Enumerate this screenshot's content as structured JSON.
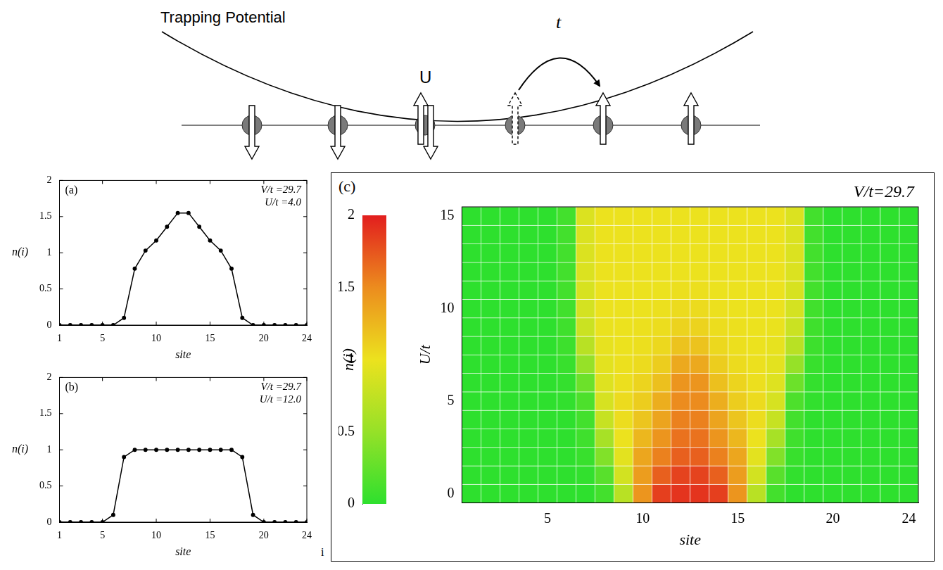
{
  "diagram": {
    "title": "Trapping Potential",
    "labels": {
      "interaction": "U",
      "hopping": "t"
    }
  },
  "chart_data": [
    {
      "type": "line",
      "panel": "(a)",
      "annotations": [
        "V/t =29.7",
        "U/t =4.0"
      ],
      "x_label": "site",
      "y_label": "n(i)",
      "x": [
        1,
        2,
        3,
        4,
        5,
        6,
        7,
        8,
        9,
        10,
        11,
        12,
        13,
        14,
        15,
        16,
        17,
        18,
        19,
        20,
        21,
        22,
        23,
        24
      ],
      "values": [
        0,
        0,
        0,
        0,
        0,
        0,
        0.1,
        0.78,
        1.03,
        1.17,
        1.36,
        1.55,
        1.55,
        1.36,
        1.17,
        1.03,
        0.78,
        0.1,
        0,
        0,
        0,
        0,
        0,
        0
      ],
      "color": "#000000",
      "marker": "circle",
      "grid": false,
      "xlim": [
        1,
        24
      ],
      "xticks": [
        1,
        5,
        10,
        15,
        20,
        24
      ],
      "ylim": [
        0,
        2
      ],
      "yticks": [
        0,
        0.5,
        1,
        1.5,
        2
      ]
    },
    {
      "type": "line",
      "panel": "(b)",
      "annotations": [
        "V/t =29.7",
        "U/t =12.0"
      ],
      "x_label": "site",
      "y_label": "n(i)",
      "x": [
        1,
        2,
        3,
        4,
        5,
        6,
        7,
        8,
        9,
        10,
        11,
        12,
        13,
        14,
        15,
        16,
        17,
        18,
        19,
        20,
        21,
        22,
        23,
        24
      ],
      "values": [
        0,
        0,
        0,
        0,
        0,
        0.1,
        0.9,
        1,
        1,
        1,
        1,
        1,
        1,
        1,
        1,
        1,
        1,
        0.9,
        0.1,
        0,
        0,
        0,
        0,
        0
      ],
      "color": "#000000",
      "marker": "circle",
      "grid": false,
      "xlim": [
        1,
        24
      ],
      "xticks": [
        1,
        5,
        10,
        15,
        20,
        24
      ],
      "ylim": [
        0,
        2
      ],
      "yticks": [
        0,
        0.5,
        1,
        1.5,
        2
      ]
    },
    {
      "type": "heatmap",
      "panel": "(c)",
      "annotations": [
        "V/t=29.7"
      ],
      "x_label": "site",
      "y_label": "U/t",
      "colorbar_label": "n(i)",
      "x": [
        1,
        2,
        3,
        4,
        5,
        6,
        7,
        8,
        9,
        10,
        11,
        12,
        13,
        14,
        15,
        16,
        17,
        18,
        19,
        20,
        21,
        22,
        23,
        24
      ],
      "y": [
        0,
        1,
        2,
        3,
        4,
        5,
        6,
        7,
        8,
        9,
        10,
        11,
        12,
        13,
        14,
        15
      ],
      "cells": [
        [
          0,
          0,
          0,
          0,
          0,
          0,
          0,
          0.1,
          0.7,
          1.45,
          1.85,
          1.9,
          1.9,
          1.85,
          1.45,
          0.7,
          0.1,
          0,
          0,
          0,
          0,
          0,
          0,
          0
        ],
        [
          0,
          0,
          0,
          0,
          0,
          0,
          0.02,
          0.2,
          0.85,
          1.4,
          1.7,
          1.83,
          1.83,
          1.7,
          1.4,
          0.85,
          0.2,
          0.02,
          0,
          0,
          0,
          0,
          0,
          0
        ],
        [
          0,
          0,
          0,
          0,
          0,
          0,
          0.05,
          0.4,
          0.95,
          1.35,
          1.55,
          1.7,
          1.7,
          1.55,
          1.35,
          0.95,
          0.4,
          0.05,
          0,
          0,
          0,
          0,
          0,
          0
        ],
        [
          0,
          0,
          0,
          0,
          0,
          0,
          0.08,
          0.6,
          1,
          1.25,
          1.45,
          1.62,
          1.62,
          1.45,
          1.25,
          1,
          0.6,
          0.08,
          0,
          0,
          0,
          0,
          0,
          0
        ],
        [
          0,
          0,
          0,
          0,
          0,
          0,
          0.1,
          0.78,
          1.03,
          1.17,
          1.36,
          1.55,
          1.55,
          1.36,
          1.17,
          1.03,
          0.78,
          0.1,
          0,
          0,
          0,
          0,
          0,
          0
        ],
        [
          0,
          0,
          0,
          0,
          0,
          0.02,
          0.15,
          0.87,
          1.04,
          1.12,
          1.3,
          1.5,
          1.5,
          1.3,
          1.12,
          1.04,
          0.87,
          0.15,
          0.02,
          0,
          0,
          0,
          0,
          0
        ],
        [
          0,
          0,
          0,
          0,
          0,
          0.03,
          0.3,
          0.92,
          1.02,
          1.08,
          1.2,
          1.45,
          1.45,
          1.2,
          1.08,
          1.02,
          0.92,
          0.3,
          0.03,
          0,
          0,
          0,
          0,
          0
        ],
        [
          0,
          0,
          0,
          0,
          0,
          0.05,
          0.5,
          0.95,
          1.01,
          1.04,
          1.12,
          1.33,
          1.33,
          1.12,
          1.04,
          1.01,
          0.95,
          0.5,
          0.05,
          0,
          0,
          0,
          0,
          0
        ],
        [
          0,
          0,
          0,
          0,
          0,
          0.07,
          0.7,
          0.97,
          1,
          1.02,
          1.06,
          1.18,
          1.18,
          1.06,
          1.02,
          1,
          0.97,
          0.7,
          0.07,
          0,
          0,
          0,
          0,
          0
        ],
        [
          0,
          0,
          0,
          0,
          0,
          0.08,
          0.8,
          0.99,
          1,
          1.01,
          1.03,
          1.09,
          1.09,
          1.03,
          1.01,
          1,
          0.99,
          0.8,
          0.08,
          0,
          0,
          0,
          0,
          0
        ],
        [
          0,
          0,
          0,
          0,
          0,
          0.09,
          0.86,
          1,
          1,
          1,
          1.01,
          1.04,
          1.04,
          1.01,
          1,
          1,
          1,
          0.86,
          0.09,
          0,
          0,
          0,
          0,
          0
        ],
        [
          0,
          0,
          0,
          0,
          0,
          0.1,
          0.88,
          1,
          1,
          1,
          1,
          1.02,
          1.02,
          1,
          1,
          1,
          1,
          0.88,
          0.1,
          0,
          0,
          0,
          0,
          0
        ],
        [
          0,
          0,
          0,
          0,
          0,
          0.1,
          0.9,
          1,
          1,
          1,
          1,
          1,
          1,
          1,
          1,
          1,
          1,
          0.9,
          0.1,
          0,
          0,
          0,
          0,
          0
        ],
        [
          0,
          0,
          0,
          0,
          0,
          0.1,
          0.9,
          1,
          1,
          1,
          1,
          1,
          1,
          1,
          1,
          1,
          1,
          0.9,
          0.1,
          0,
          0,
          0,
          0,
          0
        ],
        [
          0,
          0,
          0,
          0,
          0,
          0.1,
          0.9,
          1,
          1,
          1,
          1,
          1,
          1,
          1,
          1,
          1,
          1,
          0.9,
          0.1,
          0,
          0,
          0,
          0,
          0
        ],
        [
          0,
          0,
          0,
          0,
          0,
          0.1,
          0.9,
          1,
          1,
          1,
          1,
          1,
          1,
          1,
          1,
          1,
          1,
          0.9,
          0.1,
          0,
          0,
          0,
          0,
          0
        ]
      ],
      "grid": false,
      "xlim": [
        0.5,
        24.5
      ],
      "xticks": [
        5,
        10,
        15,
        20,
        24
      ],
      "ylim": [
        -0.5,
        15.5
      ],
      "yticks": [
        0,
        5,
        10,
        15
      ],
      "colorbar_range": [
        0,
        2
      ],
      "colorbar_ticks": [
        0,
        0.5,
        1,
        1.5,
        2
      ]
    }
  ],
  "footnote": "i"
}
